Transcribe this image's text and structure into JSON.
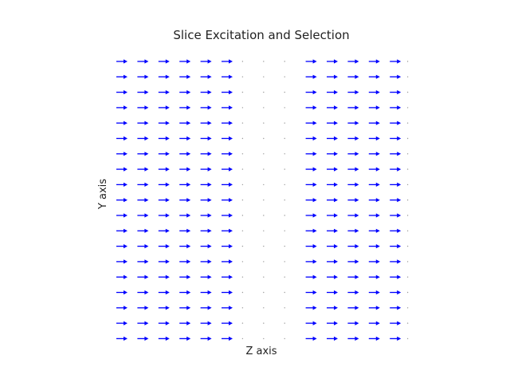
{
  "chart_data": {
    "type": "quiver",
    "title": "Slice Excitation and Selection",
    "xlabel": "Z axis",
    "ylabel": "Y axis",
    "columns_z": [
      1,
      2,
      3,
      4,
      5,
      6,
      7,
      8,
      9,
      10,
      11,
      12,
      13,
      14
    ],
    "rows_y": 19,
    "vector_x_by_column": [
      1,
      1,
      1,
      1,
      1,
      1,
      0,
      0,
      0,
      1,
      1,
      1,
      1,
      1
    ],
    "vector_y": 0,
    "edge_column_has_arrows": false,
    "arrow_color": "#0000ff",
    "dot_color": "#9a9a9a",
    "text_color": "#222222",
    "background": "#ffffff"
  }
}
